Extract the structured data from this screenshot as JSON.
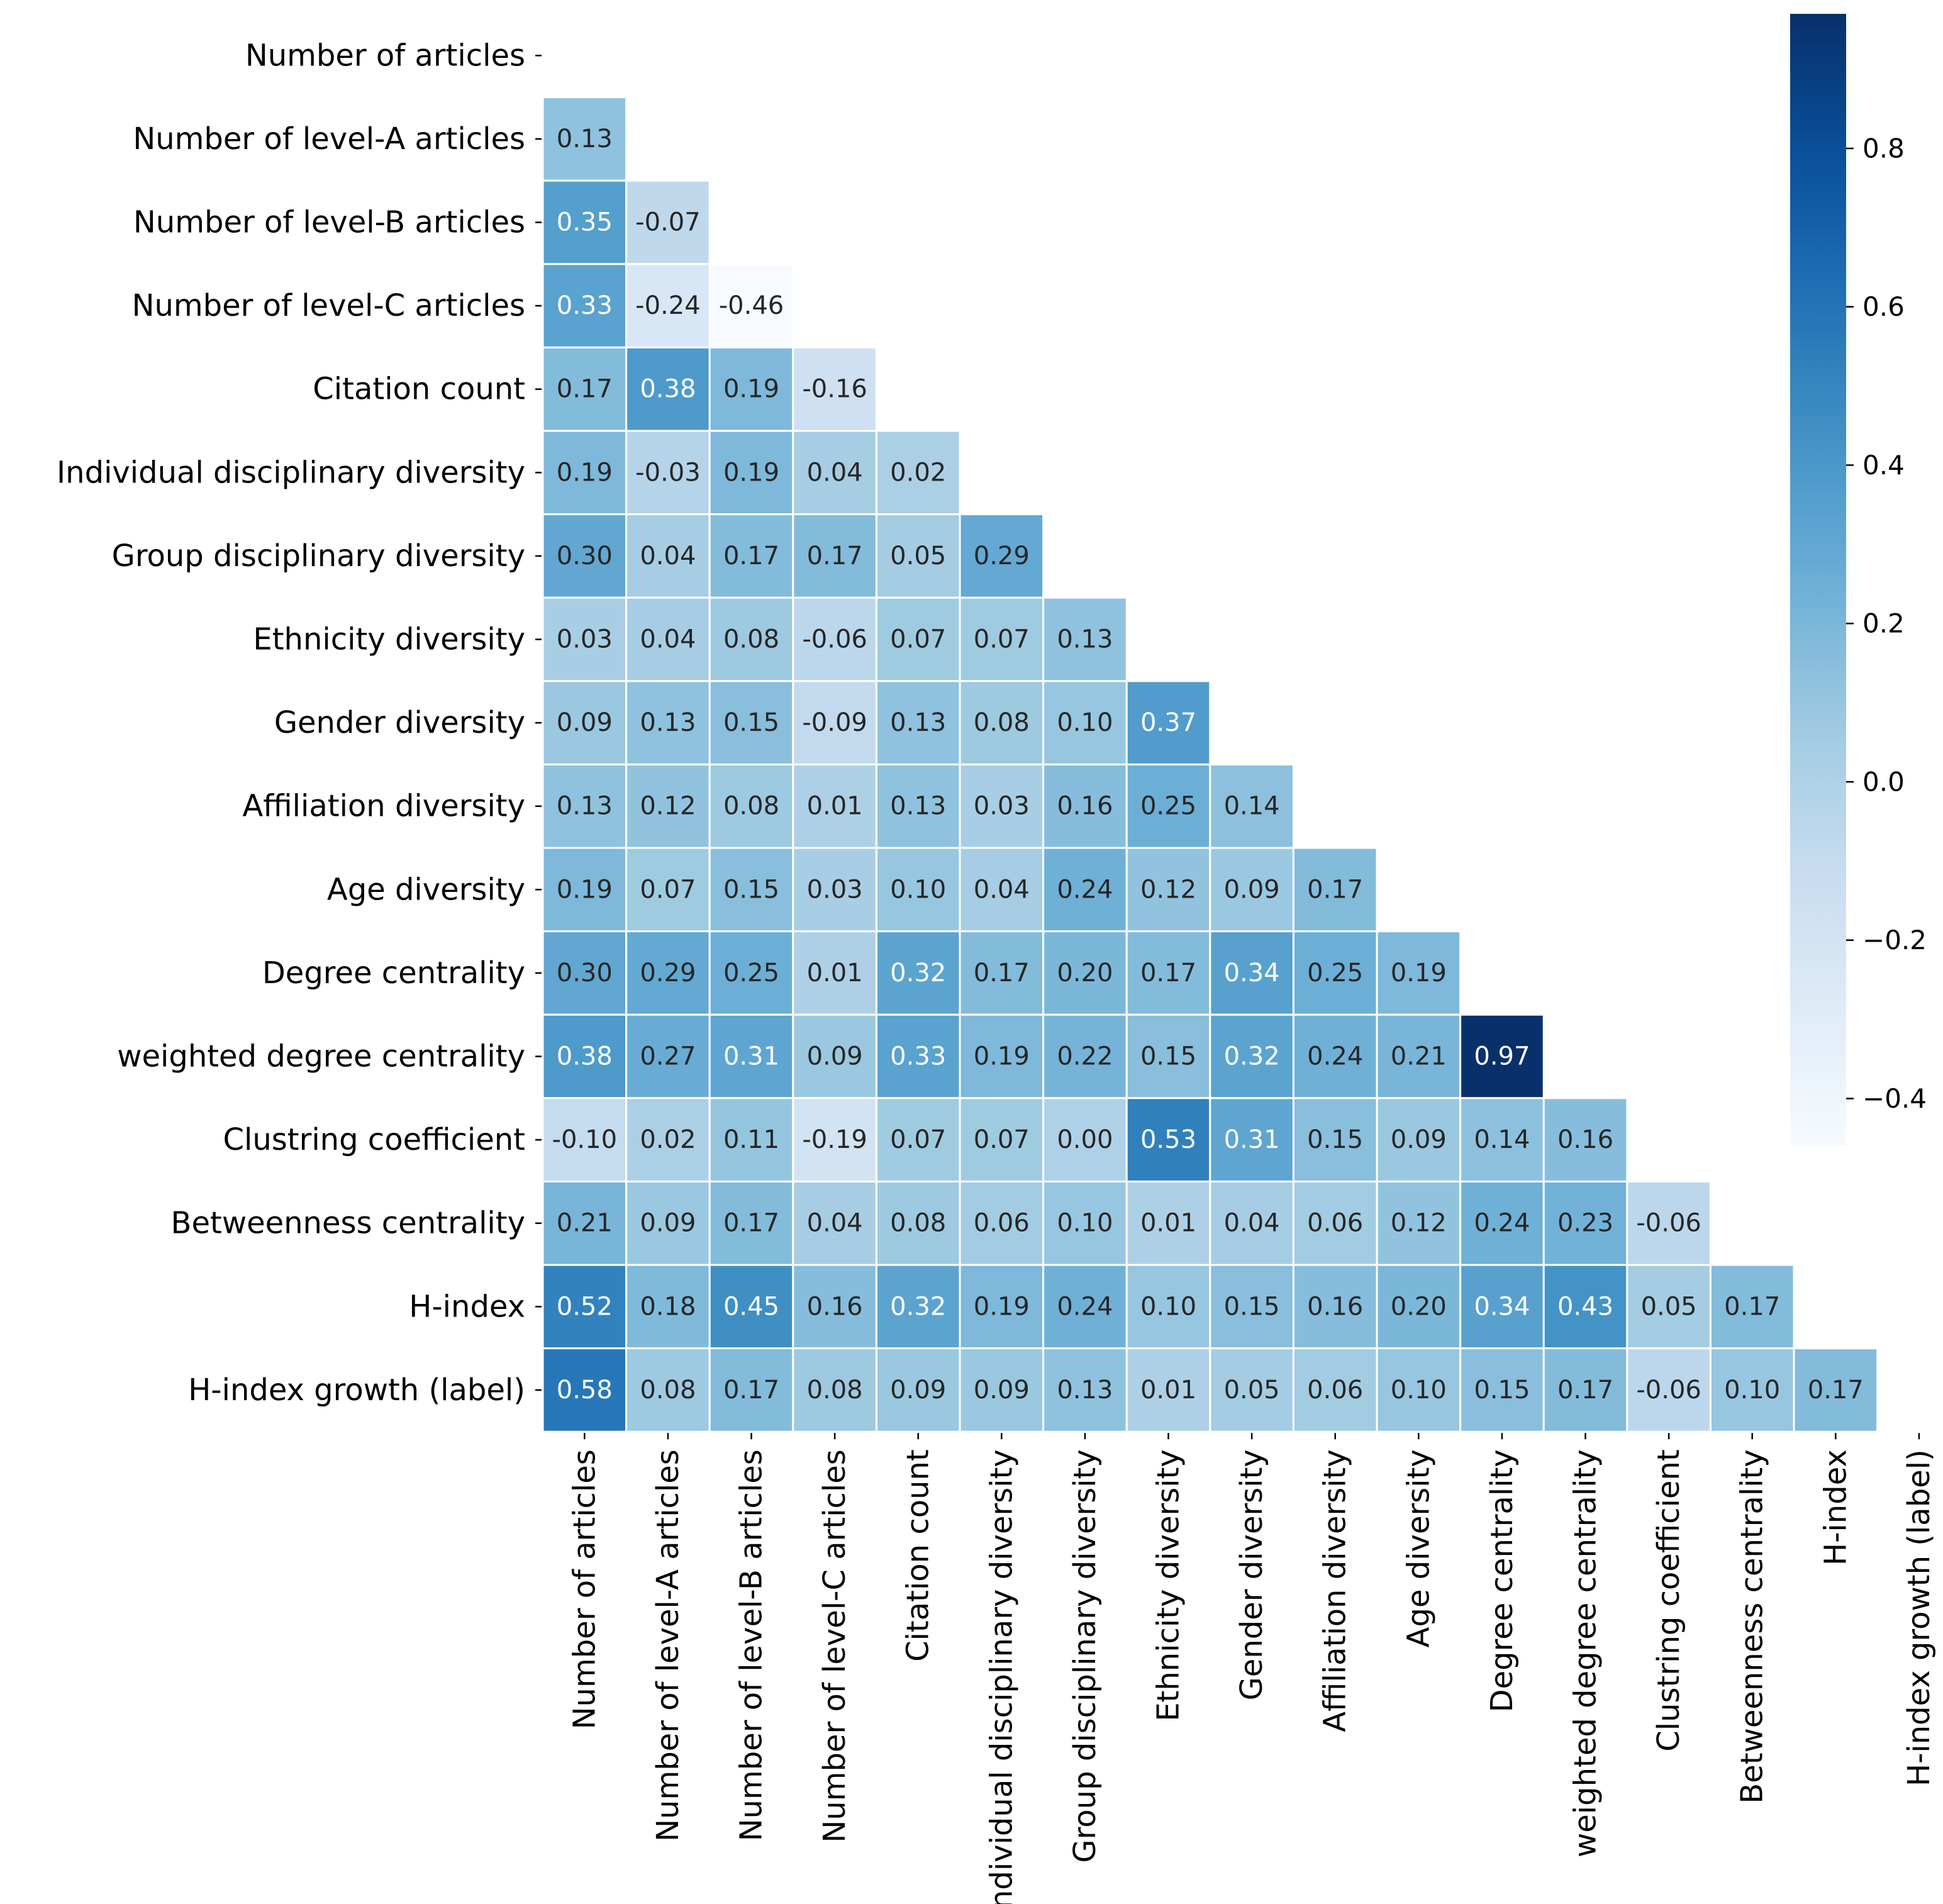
{
  "chart_data": {
    "type": "heatmap",
    "title": "",
    "labels": [
      "Number of articles",
      "Number of level-A articles",
      "Number of level-B articles",
      "Number of level-C articles",
      "Citation count",
      "Individual disciplinary diversity",
      "Group disciplinary diversity",
      "Ethnicity diversity",
      "Gender diversity",
      "Affiliation diversity",
      "Age diversity",
      "Degree centrality",
      "weighted degree centrality",
      "Clustring coefficient",
      "Betweenness centrality",
      "H-index",
      "H-index growth (label)"
    ],
    "matrix_lower": [
      [],
      [
        0.13
      ],
      [
        0.35,
        -0.07
      ],
      [
        0.33,
        -0.24,
        -0.46
      ],
      [
        0.17,
        0.38,
        0.19,
        -0.16
      ],
      [
        0.19,
        -0.03,
        0.19,
        0.04,
        0.02
      ],
      [
        0.3,
        0.04,
        0.17,
        0.17,
        0.05,
        0.29
      ],
      [
        0.03,
        0.04,
        0.08,
        -0.06,
        0.07,
        0.07,
        0.13
      ],
      [
        0.09,
        0.13,
        0.15,
        -0.09,
        0.13,
        0.08,
        0.1,
        0.37
      ],
      [
        0.13,
        0.12,
        0.08,
        0.01,
        0.13,
        0.03,
        0.16,
        0.25,
        0.14
      ],
      [
        0.19,
        0.07,
        0.15,
        0.03,
        0.1,
        0.04,
        0.24,
        0.12,
        0.09,
        0.17
      ],
      [
        0.3,
        0.29,
        0.25,
        0.01,
        0.32,
        0.17,
        0.2,
        0.17,
        0.34,
        0.25,
        0.19
      ],
      [
        0.38,
        0.27,
        0.31,
        0.09,
        0.33,
        0.19,
        0.22,
        0.15,
        0.32,
        0.24,
        0.21,
        0.97
      ],
      [
        -0.1,
        0.02,
        0.11,
        -0.19,
        0.07,
        0.07,
        0.0,
        0.53,
        0.31,
        0.15,
        0.09,
        0.14,
        0.16
      ],
      [
        0.21,
        0.09,
        0.17,
        0.04,
        0.08,
        0.06,
        0.1,
        0.01,
        0.04,
        0.06,
        0.12,
        0.24,
        0.23,
        -0.06
      ],
      [
        0.52,
        0.18,
        0.45,
        0.16,
        0.32,
        0.19,
        0.24,
        0.1,
        0.15,
        0.16,
        0.2,
        0.34,
        0.43,
        0.05,
        0.17
      ],
      [
        0.58,
        0.08,
        0.17,
        0.08,
        0.09,
        0.09,
        0.13,
        0.01,
        0.05,
        0.06,
        0.1,
        0.15,
        0.17,
        -0.06,
        0.1,
        0.17
      ]
    ],
    "colorbar": {
      "colormap": "Blues",
      "vmin": -0.46,
      "vmax": 0.97,
      "ticks": [
        0.8,
        0.6,
        0.4,
        0.2,
        0.0,
        -0.2,
        -0.4
      ],
      "tick_labels": [
        "0.8",
        "0.6",
        "0.4",
        "0.2",
        "0.0",
        "−0.2",
        "−0.4"
      ]
    }
  }
}
